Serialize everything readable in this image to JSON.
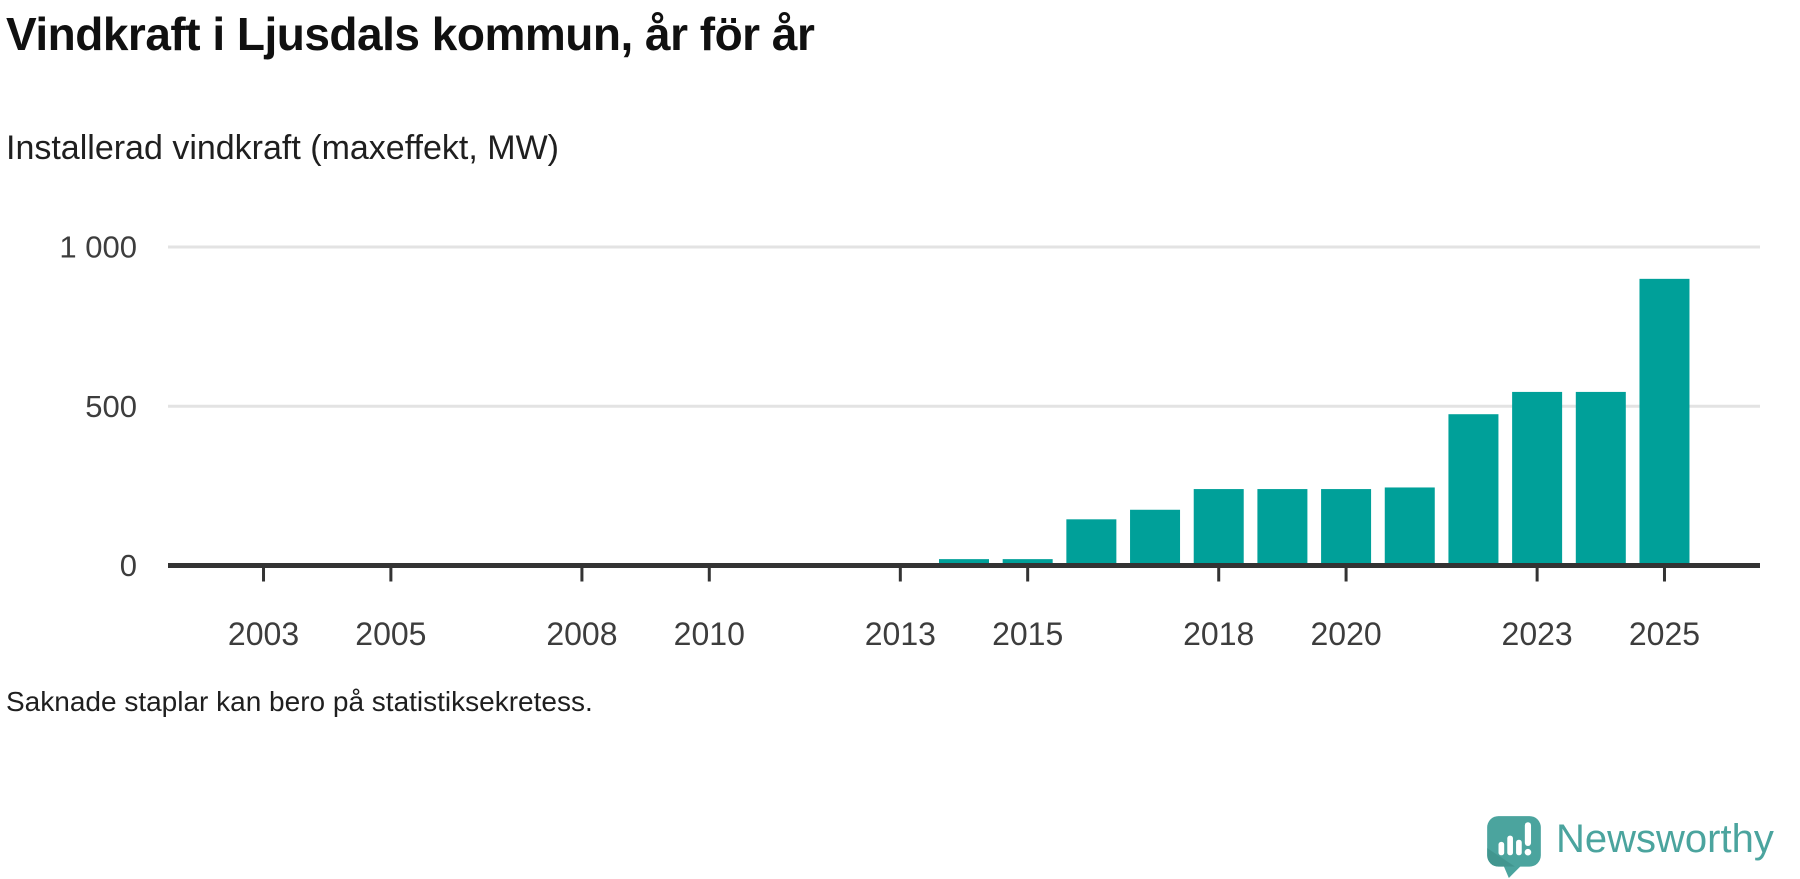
{
  "header": {
    "title": "Vindkraft i Ljusdals kommun, år för år",
    "subtitle": "Installerad vindkraft (maxeffekt, MW)"
  },
  "footnote": "Saknade staplar kan bero på statistiksekretess.",
  "branding": {
    "name": "Newsworthy",
    "icon": "speech-bubble-bar-chart-icon",
    "color": "#4BA49E"
  },
  "colors": {
    "bar": "#00A099",
    "axis": "#333333",
    "grid": "#E3E3E3",
    "tick_label": "#3D3D3D"
  },
  "chart_data": {
    "type": "bar",
    "title": "Vindkraft i Ljusdals kommun, år för år",
    "subtitle_as_ylabel": "Installerad vindkraft (maxeffekt, MW)",
    "unit": "MW",
    "x": [
      2014,
      2015,
      2016,
      2017,
      2018,
      2019,
      2020,
      2021,
      2022,
      2023,
      2024,
      2025
    ],
    "values": [
      20,
      20,
      145,
      175,
      240,
      240,
      240,
      245,
      475,
      545,
      545,
      900
    ],
    "missing_years_note": "2002–2013 har inga staplar",
    "x_axis": {
      "domain": [
        2002,
        2026
      ],
      "tick_years": [
        2003,
        2005,
        2008,
        2010,
        2013,
        2015,
        2018,
        2020,
        2023,
        2025
      ]
    },
    "y_axis": {
      "range": [
        0,
        1000
      ],
      "tick_values": [
        0,
        500,
        1000
      ],
      "tick_labels": [
        "0",
        "500",
        "1 000"
      ]
    },
    "grid": "horizontal",
    "legend": "none"
  }
}
